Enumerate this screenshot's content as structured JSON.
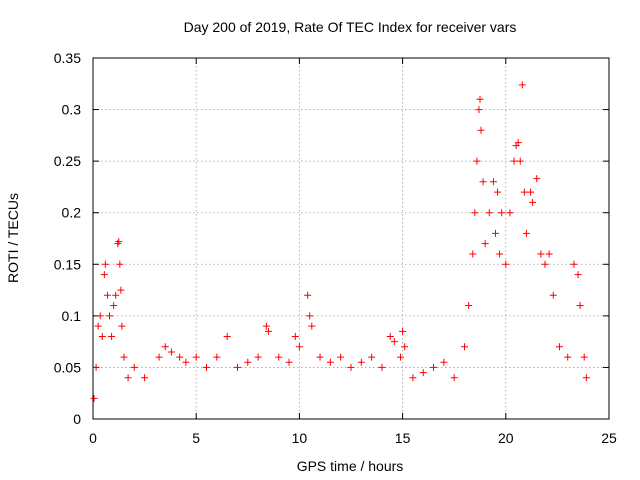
{
  "chart_data": {
    "type": "scatter",
    "title": "Day 200 of 2019, Rate Of TEC Index for receiver vars",
    "xlabel": "GPS time / hours",
    "ylabel": "ROTI / TECUs",
    "xlim": [
      0,
      25
    ],
    "ylim": [
      0,
      0.35
    ],
    "x_ticks": [
      0,
      5,
      10,
      15,
      20,
      25
    ],
    "y_ticks": [
      0,
      0.05,
      0.1,
      0.15,
      0.2,
      0.25,
      0.3,
      0.35
    ],
    "x_tick_labels": [
      "0",
      "5",
      "10",
      "15",
      "20",
      "25"
    ],
    "y_tick_labels": [
      "0",
      "0.05",
      "0.1",
      "0.15",
      "0.2",
      "0.25",
      "0.3",
      "0.35"
    ],
    "grid": true,
    "marker": "+",
    "colors": {
      "series": "#ff0000",
      "grid": "#a0a0a0",
      "axes": "#000000"
    },
    "series": [
      {
        "name": "",
        "points": [
          [
            0.05,
            0.02
          ],
          [
            0.15,
            0.05
          ],
          [
            0.25,
            0.09
          ],
          [
            0.35,
            0.1
          ],
          [
            0.45,
            0.08
          ],
          [
            0.55,
            0.14
          ],
          [
            0.6,
            0.15
          ],
          [
            0.7,
            0.12
          ],
          [
            0.8,
            0.1
          ],
          [
            0.9,
            0.08
          ],
          [
            1.0,
            0.11
          ],
          [
            1.1,
            0.12
          ],
          [
            1.2,
            0.17
          ],
          [
            1.25,
            0.172
          ],
          [
            1.3,
            0.15
          ],
          [
            1.35,
            0.125
          ],
          [
            1.4,
            0.09
          ],
          [
            1.5,
            0.06
          ],
          [
            1.7,
            0.04
          ],
          [
            2.0,
            0.05
          ],
          [
            2.5,
            0.04
          ],
          [
            3.2,
            0.06
          ],
          [
            3.5,
            0.07
          ],
          [
            3.8,
            0.065
          ],
          [
            4.2,
            0.06
          ],
          [
            4.5,
            0.055
          ],
          [
            5.0,
            0.06
          ],
          [
            5.5,
            0.05
          ],
          [
            6.0,
            0.06
          ],
          [
            6.5,
            0.08
          ],
          [
            7.0,
            0.05
          ],
          [
            7.5,
            0.055
          ],
          [
            8.0,
            0.06
          ],
          [
            8.4,
            0.09
          ],
          [
            8.5,
            0.085
          ],
          [
            9.0,
            0.06
          ],
          [
            9.5,
            0.055
          ],
          [
            9.8,
            0.08
          ],
          [
            10.0,
            0.07
          ],
          [
            10.4,
            0.12
          ],
          [
            10.5,
            0.1
          ],
          [
            10.6,
            0.09
          ],
          [
            11.0,
            0.06
          ],
          [
            11.5,
            0.055
          ],
          [
            12.0,
            0.06
          ],
          [
            12.5,
            0.05
          ],
          [
            13.0,
            0.055
          ],
          [
            13.5,
            0.06
          ],
          [
            14.0,
            0.05
          ],
          [
            14.4,
            0.08
          ],
          [
            14.6,
            0.075
          ],
          [
            14.9,
            0.06
          ],
          [
            15.0,
            0.085
          ],
          [
            15.1,
            0.07
          ],
          [
            15.5,
            0.04
          ],
          [
            16.0,
            0.045
          ],
          [
            16.5,
            0.05
          ],
          [
            17.0,
            0.055
          ],
          [
            17.5,
            0.04
          ],
          [
            18.0,
            0.07
          ],
          [
            18.2,
            0.11
          ],
          [
            18.4,
            0.16
          ],
          [
            18.5,
            0.2
          ],
          [
            18.6,
            0.25
          ],
          [
            18.7,
            0.3
          ],
          [
            18.75,
            0.31
          ],
          [
            18.8,
            0.28
          ],
          [
            18.9,
            0.23
          ],
          [
            19.0,
            0.17
          ],
          [
            19.2,
            0.2
          ],
          [
            19.4,
            0.23
          ],
          [
            19.5,
            0.18
          ],
          [
            19.6,
            0.22
          ],
          [
            19.7,
            0.16
          ],
          [
            19.8,
            0.2
          ],
          [
            20.0,
            0.15
          ],
          [
            20.2,
            0.2
          ],
          [
            20.4,
            0.25
          ],
          [
            20.5,
            0.265
          ],
          [
            20.6,
            0.268
          ],
          [
            20.7,
            0.25
          ],
          [
            20.8,
            0.324
          ],
          [
            20.9,
            0.22
          ],
          [
            21.0,
            0.18
          ],
          [
            21.2,
            0.22
          ],
          [
            21.3,
            0.21
          ],
          [
            21.5,
            0.233
          ],
          [
            21.7,
            0.16
          ],
          [
            21.9,
            0.15
          ],
          [
            22.1,
            0.16
          ],
          [
            22.3,
            0.12
          ],
          [
            22.6,
            0.07
          ],
          [
            23.0,
            0.06
          ],
          [
            23.3,
            0.15
          ],
          [
            23.5,
            0.14
          ],
          [
            23.6,
            0.11
          ],
          [
            23.8,
            0.06
          ],
          [
            23.9,
            0.04
          ]
        ]
      }
    ]
  }
}
